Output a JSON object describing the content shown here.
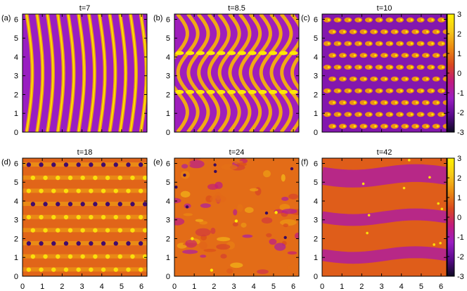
{
  "chart_data": [
    {
      "type": "heatmap",
      "panel": "(a)",
      "title": "t=7",
      "x_range": [
        0,
        6.28
      ],
      "y_range": [
        0,
        6.28
      ],
      "x_ticks": [
        "0",
        "1",
        "2",
        "3",
        "4",
        "5",
        "6"
      ],
      "y_ticks": [
        "0",
        "1",
        "2",
        "3",
        "4",
        "5",
        "6"
      ],
      "pattern": "vertical stripes with sinusoidal bend",
      "stripe_count": 12
    },
    {
      "type": "heatmap",
      "panel": "(b)",
      "title": "t=8.5",
      "x_range": [
        0,
        6.28
      ],
      "y_range": [
        0,
        6.28
      ],
      "x_ticks": [
        "0",
        "1",
        "2",
        "3",
        "4",
        "5",
        "6"
      ],
      "y_ticks": [
        "0",
        "1",
        "2",
        "3",
        "4",
        "5",
        "6"
      ],
      "pattern": "chevron stripes with roll-up rows at y=2.6 and y=4.7",
      "stripe_count": 12
    },
    {
      "type": "heatmap",
      "panel": "(c)",
      "title": "t=10",
      "x_range": [
        0,
        6.28
      ],
      "y_range": [
        0,
        6.28
      ],
      "x_ticks": [
        "0",
        "1",
        "2",
        "3",
        "4",
        "5",
        "6"
      ],
      "y_ticks": [
        "0",
        "1",
        "2",
        "3",
        "4",
        "5",
        "6"
      ],
      "pattern": "rows of vortex rolls"
    },
    {
      "type": "heatmap",
      "panel": "(d)",
      "title": "t=18",
      "x_range": [
        0,
        6.28
      ],
      "y_range": [
        0,
        6.28
      ],
      "x_ticks": [
        "0",
        "1",
        "2",
        "3",
        "4",
        "5",
        "6"
      ],
      "y_ticks": [
        "0",
        "1",
        "2",
        "3",
        "4",
        "5",
        "6"
      ],
      "pattern": "horizontal bands of vortices"
    },
    {
      "type": "heatmap",
      "panel": "(e)",
      "title": "t=24",
      "x_range": [
        0,
        6.28
      ],
      "y_range": [
        0,
        6.28
      ],
      "x_ticks": [
        "0",
        "1",
        "2",
        "3",
        "4",
        "5",
        "6"
      ],
      "y_ticks": [
        "0",
        "1",
        "2",
        "3",
        "4",
        "5",
        "6"
      ],
      "pattern": "turbulent field"
    },
    {
      "type": "heatmap",
      "panel": "(f)",
      "title": "t=42",
      "x_range": [
        0,
        6.28
      ],
      "y_range": [
        0,
        6.28
      ],
      "x_ticks": [
        "0",
        "1",
        "2",
        "3",
        "4",
        "5",
        "6"
      ],
      "y_ticks": [
        "0",
        "1",
        "2",
        "3",
        "4",
        "5",
        "6"
      ],
      "pattern": "two zonal jets"
    }
  ],
  "colorbar": {
    "range": [
      -3,
      3
    ],
    "ticks": [
      "3",
      "2",
      "1",
      "0",
      "-1",
      "-2",
      "-3"
    ],
    "colors": [
      "#0d0a22",
      "#5a0a8c",
      "#9a1ec2",
      "#c21a7e",
      "#d9481e",
      "#eb8a12",
      "#f5c81a",
      "#fff200"
    ]
  }
}
